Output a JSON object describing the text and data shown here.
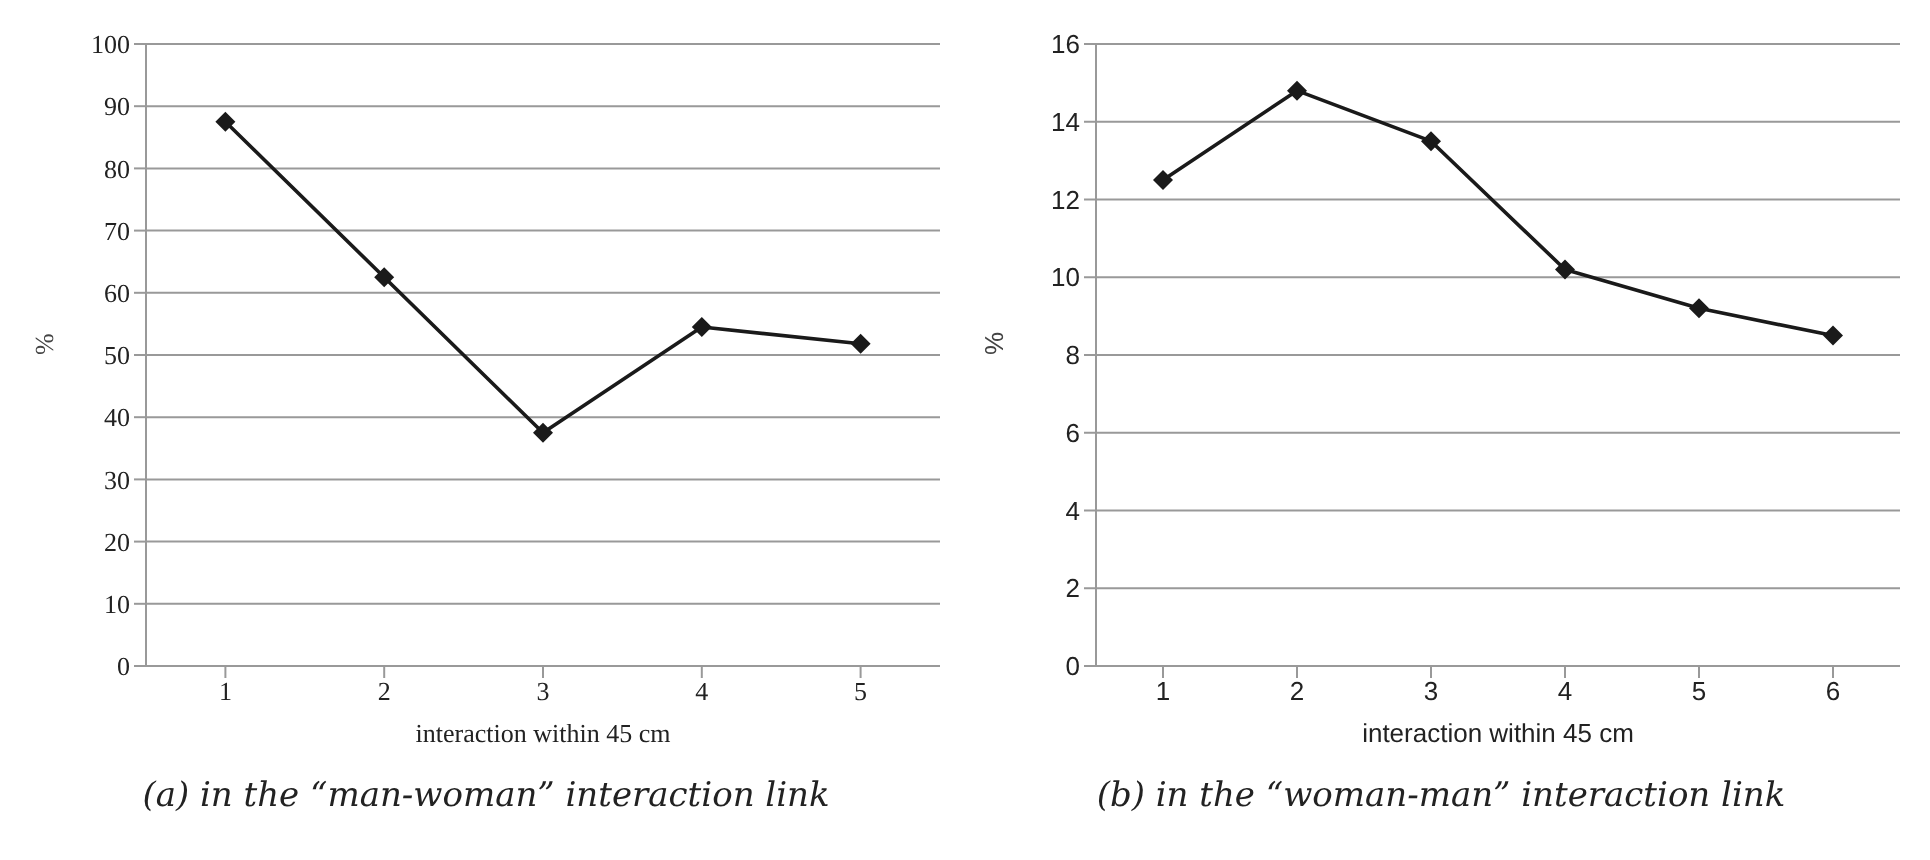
{
  "chart_data": [
    {
      "type": "line",
      "categories": [
        "1",
        "2",
        "3",
        "4",
        "5"
      ],
      "series": [
        {
          "color": "#1a1a1a",
          "values": [
            87.5,
            62.5,
            37.5,
            54.5,
            51.8
          ]
        }
      ],
      "ylim": [
        0,
        100
      ],
      "yticks": [
        0,
        10,
        20,
        30,
        40,
        50,
        60,
        70,
        80,
        90,
        100
      ],
      "xlabel": "interaction within 45 cm",
      "ylabel": "%",
      "grid": "y",
      "marker": "diamond",
      "line_style": "solid",
      "legend": false,
      "annotations": [
        "(a) in the “man-woman” interaction link"
      ]
    },
    {
      "type": "line",
      "categories": [
        "1",
        "2",
        "3",
        "4",
        "5",
        "6"
      ],
      "series": [
        {
          "color": "#1a1a1a",
          "values": [
            12.5,
            14.8,
            13.5,
            10.2,
            9.2,
            8.5
          ]
        }
      ],
      "ylim": [
        0,
        16
      ],
      "yticks": [
        0,
        2,
        4,
        6,
        8,
        10,
        12,
        14,
        16
      ],
      "xlabel": "interaction within 45 cm",
      "ylabel": "%",
      "grid": "y",
      "marker": "diamond",
      "line_style": "solid",
      "legend": false,
      "annotations": [
        "(b) in the “woman-man” interaction link"
      ]
    }
  ]
}
